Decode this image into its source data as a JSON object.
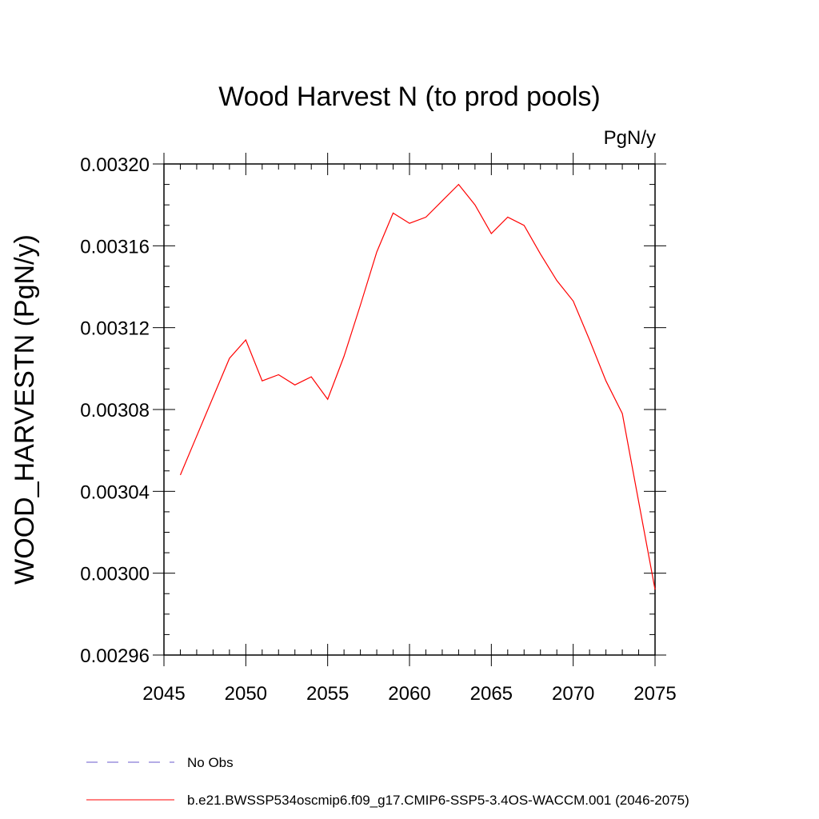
{
  "chart_data": {
    "type": "line",
    "title": "Wood Harvest N (to prod pools)",
    "units_label": "PgN/y",
    "ylabel": "WOOD_HARVESTN  (PgN/y)",
    "xlabel": "",
    "xlim": [
      2045,
      2075
    ],
    "ylim": [
      0.00296,
      0.0032
    ],
    "x_ticks": [
      2045,
      2050,
      2055,
      2060,
      2065,
      2070,
      2075
    ],
    "x_tick_labels": [
      "2045",
      "2050",
      "2055",
      "2060",
      "2065",
      "2070",
      "2075"
    ],
    "y_ticks": [
      0.00296,
      0.003,
      0.00304,
      0.00308,
      0.00312,
      0.00316,
      0.0032
    ],
    "y_tick_labels": [
      "0.00296",
      "0.00300",
      "0.00304",
      "0.00308",
      "0.00312",
      "0.00316",
      "0.00320"
    ],
    "grid": false,
    "legend_position": "bottom",
    "series": [
      {
        "name": "b.e21.BWSSP534oscmip6.f09_g17.CMIP6-SSP5-3.4OS-WACCM.001 (2046-2075)",
        "color": "#ff0000",
        "style": "solid",
        "x": [
          2046,
          2047,
          2048,
          2049,
          2050,
          2051,
          2052,
          2053,
          2054,
          2055,
          2056,
          2057,
          2058,
          2059,
          2060,
          2061,
          2062,
          2063,
          2064,
          2065,
          2066,
          2067,
          2068,
          2069,
          2070,
          2071,
          2072,
          2073,
          2074,
          2075
        ],
        "values": [
          0.003048,
          0.003067,
          0.003086,
          0.003105,
          0.003114,
          0.003094,
          0.003097,
          0.003092,
          0.003096,
          0.003085,
          0.003106,
          0.003131,
          0.003157,
          0.003176,
          0.003171,
          0.003174,
          0.003182,
          0.00319,
          0.00318,
          0.003166,
          0.003174,
          0.00317,
          0.003156,
          0.003143,
          0.003133,
          0.003114,
          0.003094,
          0.003078,
          0.003035,
          0.002992
        ]
      }
    ],
    "legend": [
      {
        "label": "No Obs",
        "color": "#6a5acd",
        "style": "dashed"
      },
      {
        "label": "b.e21.BWSSP534oscmip6.f09_g17.CMIP6-SSP5-3.4OS-WACCM.001 (2046-2075)",
        "color": "#ff0000",
        "style": "solid"
      }
    ]
  }
}
